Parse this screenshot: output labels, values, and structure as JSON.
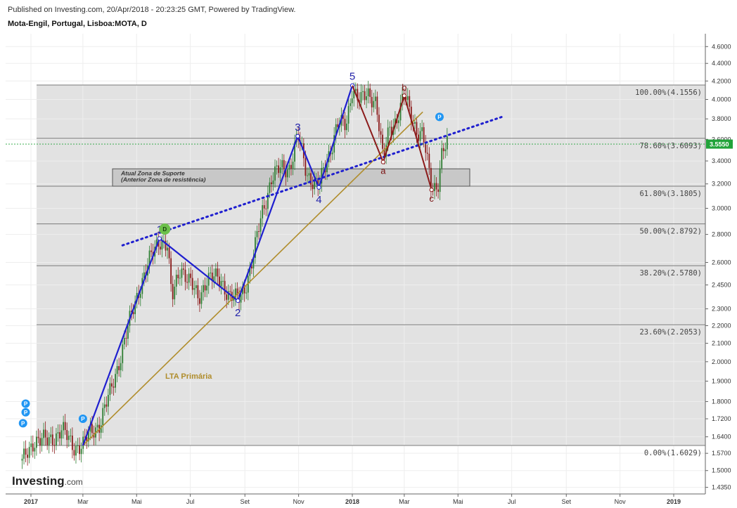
{
  "header": {
    "published": "Published on Investing.com, 20/Apr/2018 - 20:23:25 GMT, Powered by TradingView.",
    "instrument": "Mota-Engil, Portugal, Lisboa:MOTA, D"
  },
  "logo": {
    "main": "Investing",
    "suffix": ".com"
  },
  "chart_data": {
    "type": "candlestick",
    "x_ticks": [
      "2017",
      "Mar",
      "Mai",
      "Jul",
      "Set",
      "Nov",
      "2018",
      "Mar",
      "Mai",
      "Jul",
      "Set",
      "Nov",
      "2019"
    ],
    "y_ticks": [
      "4.6000",
      "4.4000",
      "4.2000",
      "4.0000",
      "3.8000",
      "3.6000",
      "3.4000",
      "3.2000",
      "3.0000",
      "2.8000",
      "2.6000",
      "2.4500",
      "2.3000",
      "2.2000",
      "2.1000",
      "2.0000",
      "1.9000",
      "1.8000",
      "1.7200",
      "1.6400",
      "1.5700",
      "1.5000",
      "1.4350"
    ],
    "y_scale": "log",
    "last_price": "3.5550",
    "last_price_value": 3.555,
    "fib_levels": [
      {
        "label": "100.00%(4.1556)",
        "value": 4.1556
      },
      {
        "label": "78.60%(3.6093)",
        "value": 3.6093
      },
      {
        "label": "61.80%(3.1805)",
        "value": 3.1805
      },
      {
        "label": "50.00%(2.8792)",
        "value": 2.8792
      },
      {
        "label": "38.20%(2.5780)",
        "value": 2.578
      },
      {
        "label": "23.60%(2.2053)",
        "value": 2.2053
      },
      {
        "label": "0.00%(1.6029)",
        "value": 1.6029
      }
    ],
    "support_zone": {
      "line1": "Atual Zona de Suporte",
      "line2": "(Anterior Zona de resistência)",
      "top": 3.33,
      "bottom": 3.1805
    },
    "trendline_label": "LTA Primária",
    "impulse_waves": [
      {
        "label": "1",
        "date": "2017-05-27",
        "value": 2.77
      },
      {
        "label": "2",
        "date": "2017-08-24",
        "value": 2.35
      },
      {
        "label": "3",
        "date": "2017-10-31",
        "value": 3.63
      },
      {
        "label": "4",
        "date": "2017-11-24",
        "value": 3.17
      },
      {
        "label": "5",
        "date": "2018-01-01",
        "value": 4.15
      }
    ],
    "corrective_waves": [
      {
        "label": "a",
        "date": "2018-02-05",
        "value": 3.39
      },
      {
        "label": "b",
        "date": "2018-03-01",
        "value": 4.04
      },
      {
        "label": "c",
        "date": "2018-04-01",
        "value": 3.15
      }
    ],
    "price_path": [
      [
        "2016-12-22",
        1.53
      ],
      [
        "2017-01-05",
        1.63
      ],
      [
        "2017-01-20",
        1.62
      ],
      [
        "2017-02-05",
        1.67
      ],
      [
        "2017-02-18",
        1.6
      ],
      [
        "2017-03-01",
        1.6029
      ],
      [
        "2017-03-10",
        1.66
      ],
      [
        "2017-03-20",
        1.7
      ],
      [
        "2017-04-01",
        1.84
      ],
      [
        "2017-04-12",
        2.02
      ],
      [
        "2017-04-22",
        2.2
      ],
      [
        "2017-05-05",
        2.45
      ],
      [
        "2017-05-15",
        2.6
      ],
      [
        "2017-05-27",
        2.77
      ],
      [
        "2017-06-05",
        2.72
      ],
      [
        "2017-06-10",
        2.35
      ],
      [
        "2017-06-20",
        2.58
      ],
      [
        "2017-07-01",
        2.46
      ],
      [
        "2017-07-10",
        2.36
      ],
      [
        "2017-07-20",
        2.5
      ],
      [
        "2017-08-05",
        2.48
      ],
      [
        "2017-08-15",
        2.38
      ],
      [
        "2017-08-24",
        2.35
      ],
      [
        "2017-09-01",
        2.44
      ],
      [
        "2017-09-10",
        2.62
      ],
      [
        "2017-09-20",
        2.95
      ],
      [
        "2017-10-01",
        3.25
      ],
      [
        "2017-10-12",
        3.33
      ],
      [
        "2017-10-22",
        3.35
      ],
      [
        "2017-10-31",
        3.63
      ],
      [
        "2017-11-10",
        3.3
      ],
      [
        "2017-11-24",
        3.17
      ],
      [
        "2017-12-05",
        3.45
      ],
      [
        "2017-12-15",
        3.75
      ],
      [
        "2017-12-25",
        3.72
      ],
      [
        "2018-01-01",
        4.15
      ],
      [
        "2018-01-10",
        3.98
      ],
      [
        "2018-01-20",
        4.05
      ],
      [
        "2018-01-28",
        4.0
      ],
      [
        "2018-02-05",
        3.39
      ],
      [
        "2018-02-12",
        3.7
      ],
      [
        "2018-02-20",
        3.8
      ],
      [
        "2018-03-01",
        4.04
      ],
      [
        "2018-03-08",
        3.85
      ],
      [
        "2018-03-15",
        3.7
      ],
      [
        "2018-03-22",
        3.65
      ],
      [
        "2018-04-01",
        3.15
      ],
      [
        "2018-04-08",
        3.2
      ],
      [
        "2018-04-13",
        3.5
      ],
      [
        "2018-04-20",
        3.555
      ]
    ],
    "trendlines": [
      {
        "name": "LTA",
        "from": [
          "2017-03-01",
          1.6029
        ],
        "to": [
          "2018-03-22",
          3.87
        ]
      },
      {
        "name": "blue-dotted",
        "from": [
          "2017-04-15",
          2.72
        ],
        "to": [
          "2018-06-20",
          3.82
        ]
      }
    ],
    "markers": [
      {
        "glyph": "P",
        "date": "2016-12-23",
        "value": 1.7
      },
      {
        "glyph": "P",
        "date": "2016-12-26",
        "value": 1.75
      },
      {
        "glyph": "P",
        "date": "2016-12-26",
        "value": 1.79
      },
      {
        "glyph": "P",
        "date": "2017-03-01",
        "value": 1.72
      },
      {
        "glyph": "D",
        "date": "2017-06-02",
        "value": 2.84
      },
      {
        "glyph": "P",
        "date": "2018-04-10",
        "value": 3.82
      }
    ]
  },
  "colors": {
    "up": "#2e7d32",
    "down": "#8b1a1a",
    "impulse": "#1f1fcf",
    "corrective": "#8b1a1a",
    "lta": "#b08d2c",
    "dotted": "#1f1fcf",
    "last_price_bg": "#21a33a",
    "marker_p": "#2196f3",
    "marker_d": "#6cc04a"
  }
}
